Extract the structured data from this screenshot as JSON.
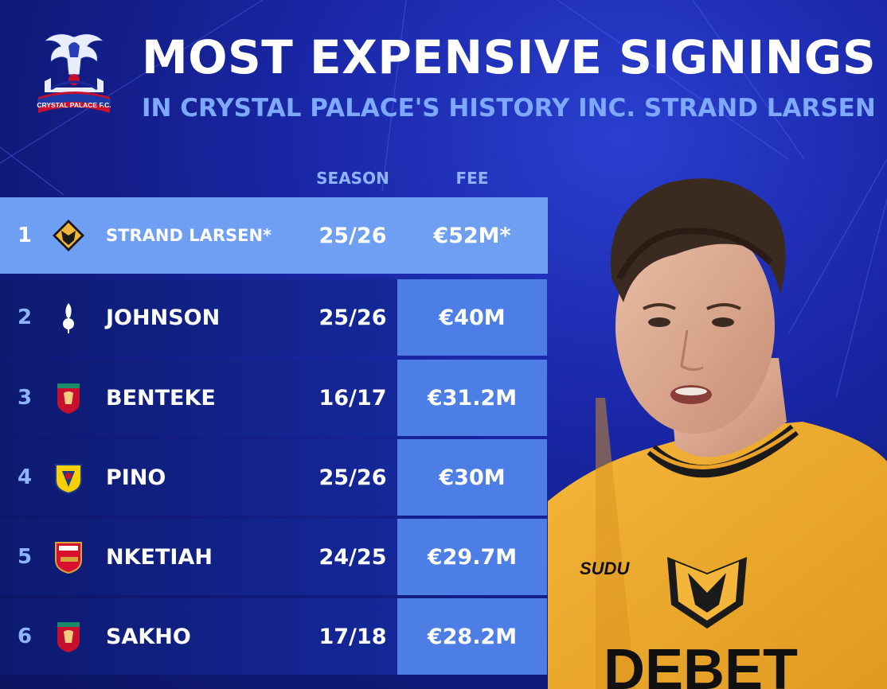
{
  "header": {
    "title": "MOST EXPENSIVE SIGNINGS",
    "subtitle": "IN CRYSTAL PALACE'S HISTORY INC. STRAND LARSEN",
    "crest_label": "CRYSTAL PALACE F.C."
  },
  "columns": {
    "season": "SEASON",
    "fee": "FEE"
  },
  "colors": {
    "background": "#1a27a8",
    "highlight": "#6f9ff2",
    "fee_cell": "#4d7ee6",
    "accent_text": "#7fa8ff"
  },
  "rows": [
    {
      "rank": "1",
      "club_icon": "wolves-crest-icon",
      "name": "STRAND LARSEN*",
      "season": "25/26",
      "fee": "€52M*"
    },
    {
      "rank": "2",
      "club_icon": "tottenham-crest-icon",
      "name": "JOHNSON",
      "season": "25/26",
      "fee": "€40M"
    },
    {
      "rank": "3",
      "club_icon": "liverpool-crest-icon",
      "name": "BENTEKE",
      "season": "16/17",
      "fee": "€31.2M"
    },
    {
      "rank": "4",
      "club_icon": "villarreal-crest-icon",
      "name": "PINO",
      "season": "25/26",
      "fee": "€30M"
    },
    {
      "rank": "5",
      "club_icon": "arsenal-crest-icon",
      "name": "NKETIAH",
      "season": "24/25",
      "fee": "€29.7M"
    },
    {
      "rank": "6",
      "club_icon": "liverpool-crest-icon",
      "name": "SAKHO",
      "season": "17/18",
      "fee": "€28.2M"
    }
  ],
  "player": {
    "shirt_brand": "SUDU",
    "shirt_text": "DEBET"
  }
}
